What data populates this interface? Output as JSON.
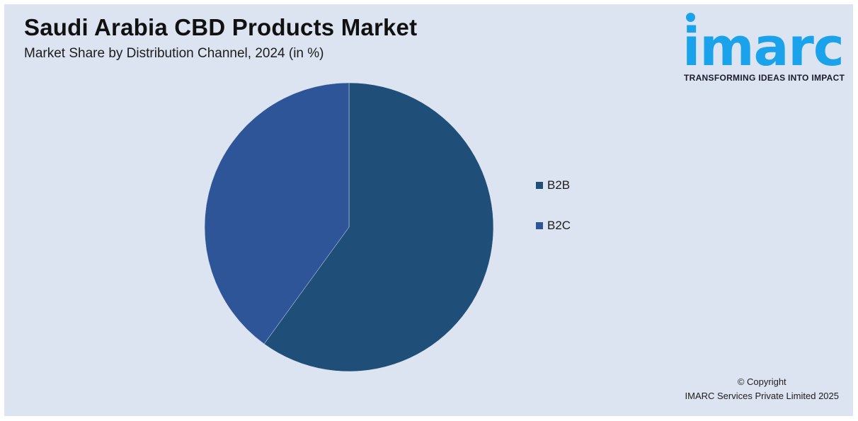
{
  "header": {
    "title": "Saudi Arabia CBD Products Market",
    "subtitle": "Market Share by Distribution Channel, 2024 (in %)"
  },
  "logo": {
    "word": "imarc",
    "tagline": "TRANSFORMING IDEAS INTO IMPACT",
    "color": "#1aa3ea"
  },
  "chart_data": {
    "type": "pie",
    "categories": [
      "B2B",
      "B2C"
    ],
    "values": [
      60,
      40
    ],
    "colors": [
      "#1f4e79",
      "#2e5597"
    ],
    "start_angle_deg": 0,
    "direction": "clockwise",
    "legend_position": "right"
  },
  "footer": {
    "copyright": "© Copyright",
    "company": "IMARC Services Private Limited 2025"
  }
}
